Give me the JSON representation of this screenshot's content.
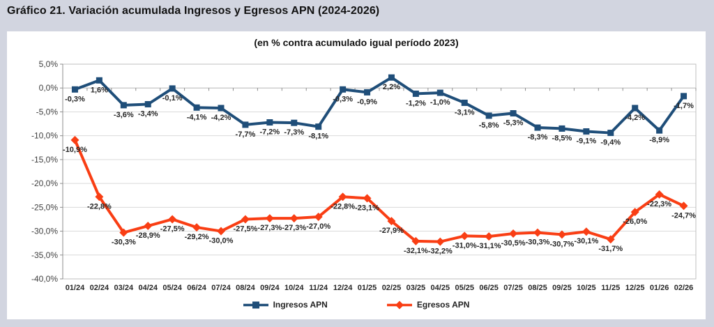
{
  "chart_data": {
    "type": "line",
    "title": "Gráfico 21. Variación acumulada Ingresos y Egresos APN (2024-2026)",
    "subtitle": "(en % contra acumulado igual período 2023)",
    "categories": [
      "01/24",
      "02/24",
      "03/24",
      "04/24",
      "05/24",
      "06/24",
      "07/24",
      "08/24",
      "09/24",
      "10/24",
      "11/24",
      "12/24",
      "01/25",
      "02/25",
      "03/25",
      "04/25",
      "05/25",
      "06/25",
      "07/25",
      "08/25",
      "09/25",
      "10/25",
      "11/25",
      "12/25",
      "01/26",
      "02/26"
    ],
    "series": [
      {
        "name": "Ingresos APN",
        "color": "#1F4E79",
        "marker": "square",
        "values": [
          -0.3,
          1.6,
          -3.6,
          -3.4,
          -0.1,
          -4.1,
          -4.2,
          -7.7,
          -7.2,
          -7.3,
          -8.1,
          -0.3,
          -0.9,
          2.2,
          -1.2,
          -1.0,
          -3.1,
          -5.8,
          -5.3,
          -8.3,
          -8.5,
          -9.1,
          -9.4,
          -4.2,
          -8.9,
          -1.7
        ],
        "labels": [
          "-0,3%",
          "1,6%",
          "-3,6%",
          "-3,4%",
          "-0,1%",
          "-4,1%",
          "-4,2%",
          "-7,7%",
          "-7,2%",
          "-7,3%",
          "-8,1%",
          "-0,3%",
          "-0,9%",
          "2,2%",
          "-1,2%",
          "-1,0%",
          "-3,1%",
          "-5,8%",
          "-5,3%",
          "-8,3%",
          "-8,5%",
          "-9,1%",
          "-9,4%",
          "-4,2%",
          "-8,9%",
          "-1,7%"
        ]
      },
      {
        "name": "Egresos APN",
        "color": "#F93E14",
        "marker": "diamond",
        "values": [
          -10.9,
          -22.8,
          -30.3,
          -28.9,
          -27.5,
          -29.2,
          -30.0,
          -27.5,
          -27.3,
          -27.3,
          -27.0,
          -22.8,
          -23.1,
          -27.9,
          -32.1,
          -32.2,
          -31.0,
          -31.1,
          -30.5,
          -30.3,
          -30.7,
          -30.1,
          -31.7,
          -26.0,
          -22.3,
          -24.7
        ],
        "labels": [
          "-10,9%",
          "-22,8%",
          "-30,3%",
          "-28,9%",
          "-27,5%",
          "-29,2%",
          "-30,0%",
          "-27,5%",
          "-27,3%",
          "-27,3%",
          "-27,0%",
          "-22,8%",
          "-23,1%",
          "-27,9%",
          "-32,1%",
          "-32,2%",
          "-31,0%",
          "-31,1%",
          "-30,5%",
          "-30,3%",
          "-30,7%",
          "-30,1%",
          "-31,7%",
          "-26,0%",
          "-22,3%",
          "-24,7%"
        ]
      }
    ],
    "ylim": [
      -40,
      5
    ],
    "ytick_step": 5,
    "ytick_labels": [
      "5,0%",
      "0,0%",
      "-5,0%",
      "-10,0%",
      "-15,0%",
      "-20,0%",
      "-25,0%",
      "-30,0%",
      "-35,0%",
      "-40,0%"
    ],
    "grid": true,
    "legend_position": "bottom"
  },
  "colors": {
    "page_background": "#D2D5E0",
    "panel_background": "#FFFFFF",
    "gridline": "#D9D9D9",
    "plot_border": "#BFBFBF",
    "axis": "#8C8C8C",
    "label_text": "#262626"
  }
}
